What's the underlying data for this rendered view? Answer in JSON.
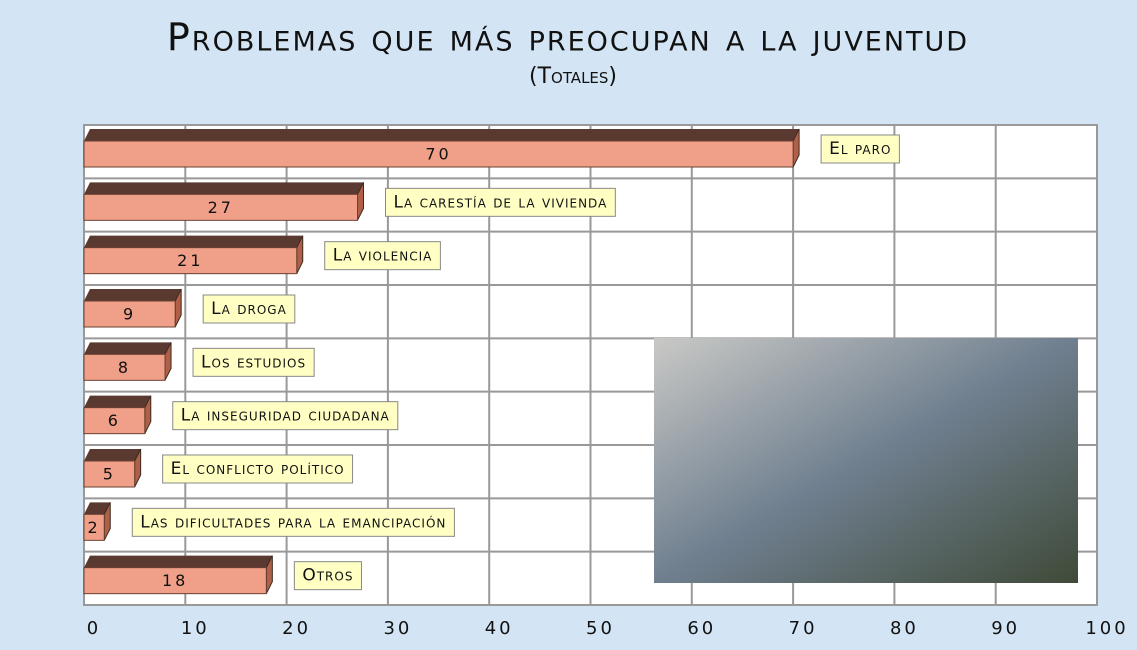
{
  "chart_data": {
    "type": "hbar",
    "title": "Problemas que más preocupan a la juventud",
    "subtitle": "(Totales)",
    "categories": [
      "El paro",
      "La carestía de la vivienda",
      "La violencia",
      "La droga",
      "Los estudios",
      "La inseguridad ciudadana",
      "El conflicto político",
      "Las dificultades para la emancipación",
      "Otros"
    ],
    "values": [
      70,
      27,
      21,
      9,
      8,
      6,
      5,
      2,
      18
    ],
    "color": "#f0a088",
    "xlim": [
      0,
      100
    ],
    "xticks": [
      0,
      10,
      20,
      30,
      40,
      50,
      60,
      70,
      80,
      90,
      100
    ],
    "grid": true
  }
}
